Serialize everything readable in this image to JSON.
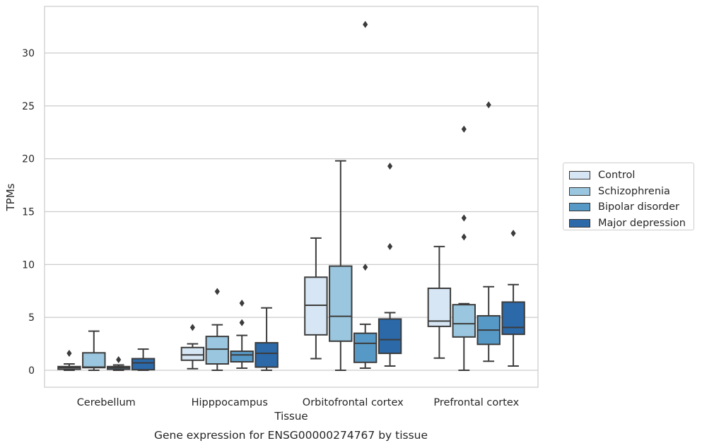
{
  "chart_data": {
    "type": "box",
    "title": "",
    "caption": "Gene expression for ENSG00000274767 by tissue",
    "xlabel": "Tissue",
    "ylabel": "TPMs",
    "ylim": [
      -1.6,
      34
    ],
    "yticks": [
      0,
      5,
      10,
      15,
      20,
      25,
      30
    ],
    "grid": true,
    "legend_position": "right",
    "categories": [
      "Cerebellum",
      "Hipppocampus",
      "Orbitofrontal cortex",
      "Prefrontal cortex"
    ],
    "series": [
      {
        "name": "Control",
        "color": "#d7e6f4",
        "boxes": [
          {
            "whislo": 0.0,
            "q1": 0.1,
            "med": 0.25,
            "q3": 0.35,
            "whishi": 0.6,
            "fliers": [
              1.6
            ]
          },
          {
            "whislo": 0.15,
            "q1": 0.95,
            "med": 1.45,
            "q3": 2.15,
            "whishi": 2.5,
            "fliers": [
              4.05
            ]
          },
          {
            "whislo": 1.1,
            "q1": 3.35,
            "med": 6.15,
            "q3": 8.8,
            "whishi": 12.5,
            "fliers": []
          },
          {
            "whislo": 1.15,
            "q1": 4.15,
            "med": 4.65,
            "q3": 7.75,
            "whishi": 11.7,
            "fliers": []
          }
        ]
      },
      {
        "name": "Schizophrenia",
        "color": "#9ac7df",
        "boxes": [
          {
            "whislo": 0.0,
            "q1": 0.25,
            "med": 0.3,
            "q3": 1.65,
            "whishi": 3.7,
            "fliers": []
          },
          {
            "whislo": 0.0,
            "q1": 0.6,
            "med": 2.0,
            "q3": 3.2,
            "whishi": 4.3,
            "fliers": [
              7.45
            ]
          },
          {
            "whislo": 0.0,
            "q1": 2.75,
            "med": 5.1,
            "q3": 9.85,
            "whishi": 19.8,
            "fliers": []
          },
          {
            "whislo": 0.0,
            "q1": 3.15,
            "med": 4.4,
            "q3": 6.2,
            "whishi": 6.3,
            "fliers": [
              12.6,
              14.4,
              22.8
            ]
          }
        ]
      },
      {
        "name": "Bipolar disorder",
        "color": "#5799c6",
        "boxes": [
          {
            "whislo": 0.0,
            "q1": 0.1,
            "med": 0.25,
            "q3": 0.35,
            "whishi": 0.5,
            "fliers": [
              1.0
            ]
          },
          {
            "whislo": 0.2,
            "q1": 0.8,
            "med": 1.45,
            "q3": 1.8,
            "whishi": 3.3,
            "fliers": [
              4.5,
              6.35
            ]
          },
          {
            "whislo": 0.2,
            "q1": 0.75,
            "med": 2.55,
            "q3": 3.5,
            "whishi": 4.35,
            "fliers": [
              9.75,
              32.7
            ]
          },
          {
            "whislo": 0.85,
            "q1": 2.45,
            "med": 3.8,
            "q3": 5.15,
            "whishi": 7.9,
            "fliers": [
              25.1
            ]
          }
        ]
      },
      {
        "name": "Major depression",
        "color": "#2b69a9",
        "boxes": [
          {
            "whislo": 0.0,
            "q1": 0.05,
            "med": 0.7,
            "q3": 1.1,
            "whishi": 2.0,
            "fliers": []
          },
          {
            "whislo": 0.0,
            "q1": 0.3,
            "med": 1.6,
            "q3": 2.6,
            "whishi": 5.9,
            "fliers": []
          },
          {
            "whislo": 0.4,
            "q1": 1.6,
            "med": 2.9,
            "q3": 4.85,
            "whishi": 5.45,
            "fliers": [
              11.7,
              19.3
            ]
          },
          {
            "whislo": 0.4,
            "q1": 3.4,
            "med": 4.05,
            "q3": 6.45,
            "whishi": 8.1,
            "fliers": [
              12.95
            ]
          }
        ]
      }
    ]
  }
}
